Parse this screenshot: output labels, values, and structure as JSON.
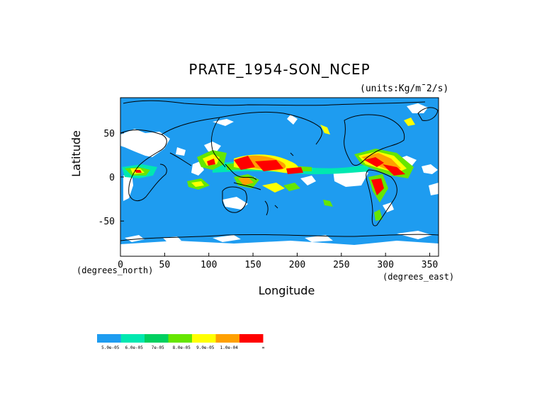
{
  "title": "PRATE_1954-SON_NCEP",
  "units": "(units:Kg/m^2/s)",
  "units_display": "(units:Kg/m¯2/s)",
  "y_axis": {
    "label": "Latitude",
    "ticks": [
      "50",
      "0",
      "-50"
    ],
    "ticks_values": [
      50,
      0,
      -50
    ],
    "range": [
      -90,
      90
    ],
    "note": "(degrees_north)"
  },
  "x_axis": {
    "label": "Longitude",
    "ticks": [
      "0",
      "50",
      "100",
      "150",
      "200",
      "250",
      "300",
      "350"
    ],
    "ticks_values": [
      0,
      50,
      100,
      150,
      200,
      250,
      300,
      350
    ],
    "range": [
      0,
      360
    ],
    "note": "(degrees_east)"
  },
  "colors": {
    "ocean_background": "#1e9cf0",
    "land_lines": "#000000",
    "missing": "#ffffff"
  },
  "legend": {
    "colors": [
      "#1e9cf0",
      "#00e8b0",
      "#00d060",
      "#66e600",
      "#ffff00",
      "#ffa000",
      "#ff0000"
    ],
    "labels": [
      "5.0e-05",
      "6.0e-05",
      "7e-05",
      "8.0e-05",
      "9.0e-05",
      "1.0e-04",
      "∞"
    ]
  }
}
